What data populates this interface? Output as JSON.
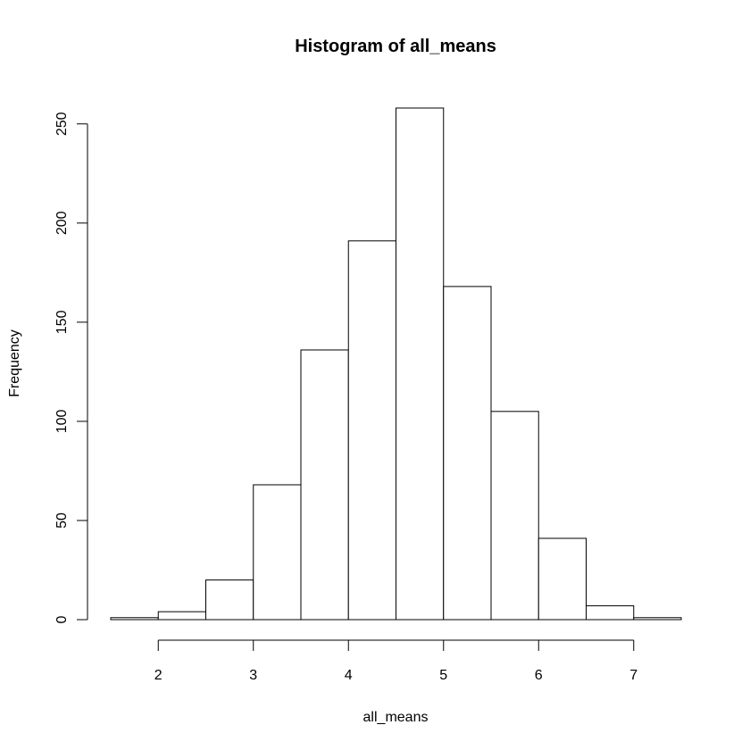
{
  "chart_data": {
    "type": "bar",
    "title": "Histogram of all_means",
    "xlabel": "all_means",
    "ylabel": "Frequency",
    "bin_edges": [
      1.5,
      2.0,
      2.5,
      3.0,
      3.5,
      4.0,
      4.5,
      5.0,
      5.5,
      6.0,
      6.5,
      7.0,
      7.5
    ],
    "values": [
      1,
      4,
      20,
      68,
      136,
      191,
      258,
      168,
      105,
      41,
      7,
      1
    ],
    "xlim": [
      1.5,
      7.5
    ],
    "ylim": [
      0,
      258
    ],
    "x_ticks": [
      2,
      3,
      4,
      5,
      6,
      7
    ],
    "y_ticks": [
      0,
      50,
      100,
      150,
      200,
      250
    ],
    "x_tick_labels": [
      "2",
      "3",
      "4",
      "5",
      "6",
      "7"
    ],
    "y_tick_labels": [
      "0",
      "50",
      "100",
      "150",
      "200",
      "250"
    ],
    "grid": false,
    "legend": "none",
    "bar_fill": "#ffffff",
    "bar_stroke": "#000000"
  }
}
